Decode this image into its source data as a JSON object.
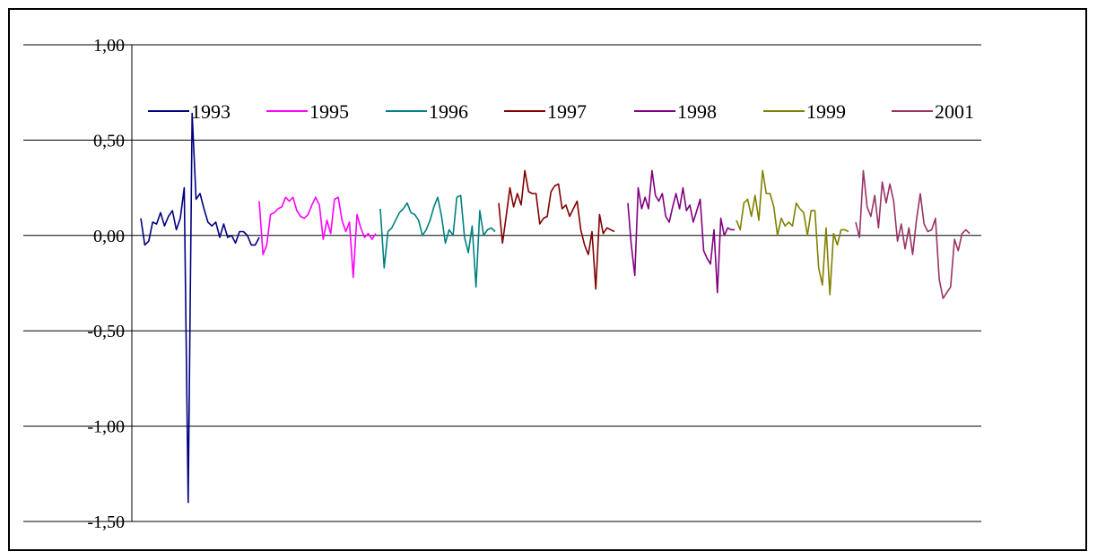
{
  "chart_data": {
    "type": "line",
    "title": "",
    "xlabel": "",
    "ylabel": "",
    "ylim": [
      -1.5,
      1.0
    ],
    "yticks": [
      1.0,
      0.5,
      0.0,
      -0.5,
      -1.0,
      -1.5
    ],
    "ytick_labels": [
      "1,00",
      "0,50",
      "0,00",
      "-0,50",
      "-1,00",
      "-1,50"
    ],
    "grid": true,
    "legend_position": "top",
    "series": [
      {
        "name": "1993",
        "color": "#000080",
        "values": [
          0.09,
          -0.05,
          -0.03,
          0.07,
          0.06,
          0.12,
          0.05,
          0.1,
          0.13,
          0.03,
          0.09,
          0.25,
          -1.4,
          0.64,
          0.19,
          0.22,
          0.14,
          0.07,
          0.05,
          0.07,
          -0.01,
          0.06,
          -0.01,
          0.0,
          -0.04,
          0.02,
          0.02,
          0.0,
          -0.05,
          -0.05,
          -0.01
        ]
      },
      {
        "name": "1995",
        "color": "#ff00ff",
        "values": [
          0.18,
          -0.1,
          -0.05,
          0.11,
          0.12,
          0.14,
          0.15,
          0.2,
          0.18,
          0.2,
          0.13,
          0.1,
          0.09,
          0.11,
          0.16,
          0.2,
          0.16,
          -0.02,
          0.08,
          0.01,
          0.19,
          0.2,
          0.08,
          0.02,
          0.07,
          -0.22,
          0.11,
          0.04,
          -0.01,
          0.01,
          -0.02,
          0.01
        ]
      },
      {
        "name": "1996",
        "color": "#008080",
        "values": [
          0.14,
          -0.17,
          0.02,
          0.04,
          0.08,
          0.12,
          0.14,
          0.17,
          0.12,
          0.11,
          0.08,
          0.0,
          0.03,
          0.08,
          0.15,
          0.2,
          0.1,
          -0.04,
          0.03,
          0.0,
          0.2,
          0.21,
          -0.01,
          -0.09,
          0.05,
          -0.27,
          0.13,
          0.0,
          0.03,
          0.04,
          0.02
        ]
      },
      {
        "name": "1997",
        "color": "#800000",
        "values": [
          0.17,
          -0.04,
          0.1,
          0.25,
          0.15,
          0.22,
          0.16,
          0.34,
          0.23,
          0.22,
          0.22,
          0.06,
          0.09,
          0.1,
          0.23,
          0.26,
          0.27,
          0.14,
          0.16,
          0.1,
          0.14,
          0.18,
          0.03,
          -0.05,
          -0.1,
          0.02,
          -0.28,
          0.11,
          0.01,
          0.04,
          0.03,
          0.02
        ]
      },
      {
        "name": "1998",
        "color": "#800080",
        "values": [
          0.17,
          -0.05,
          -0.21,
          0.25,
          0.14,
          0.2,
          0.14,
          0.34,
          0.21,
          0.18,
          0.22,
          0.1,
          0.07,
          0.15,
          0.22,
          0.14,
          0.25,
          0.13,
          0.16,
          0.07,
          0.13,
          0.19,
          -0.08,
          -0.12,
          -0.15,
          0.03,
          -0.3,
          0.09,
          0.0,
          0.04,
          0.03,
          0.03
        ]
      },
      {
        "name": "1999",
        "color": "#808000",
        "values": [
          0.08,
          0.03,
          0.17,
          0.19,
          0.1,
          0.21,
          0.08,
          0.34,
          0.22,
          0.22,
          0.15,
          0.0,
          0.09,
          0.05,
          0.07,
          0.05,
          0.17,
          0.14,
          0.12,
          0.0,
          0.13,
          0.13,
          -0.17,
          -0.26,
          0.04,
          -0.31,
          0.01,
          -0.05,
          0.03,
          0.03,
          0.02
        ]
      },
      {
        "name": "2001",
        "color": "#993366",
        "values": [
          0.07,
          -0.01,
          0.34,
          0.15,
          0.1,
          0.21,
          0.04,
          0.28,
          0.17,
          0.27,
          0.18,
          -0.03,
          0.06,
          -0.07,
          0.04,
          -0.1,
          0.08,
          0.22,
          0.06,
          0.02,
          0.03,
          0.09,
          -0.23,
          -0.33,
          -0.3,
          -0.27,
          -0.02,
          -0.08,
          0.01,
          0.03,
          0.01
        ]
      }
    ]
  }
}
